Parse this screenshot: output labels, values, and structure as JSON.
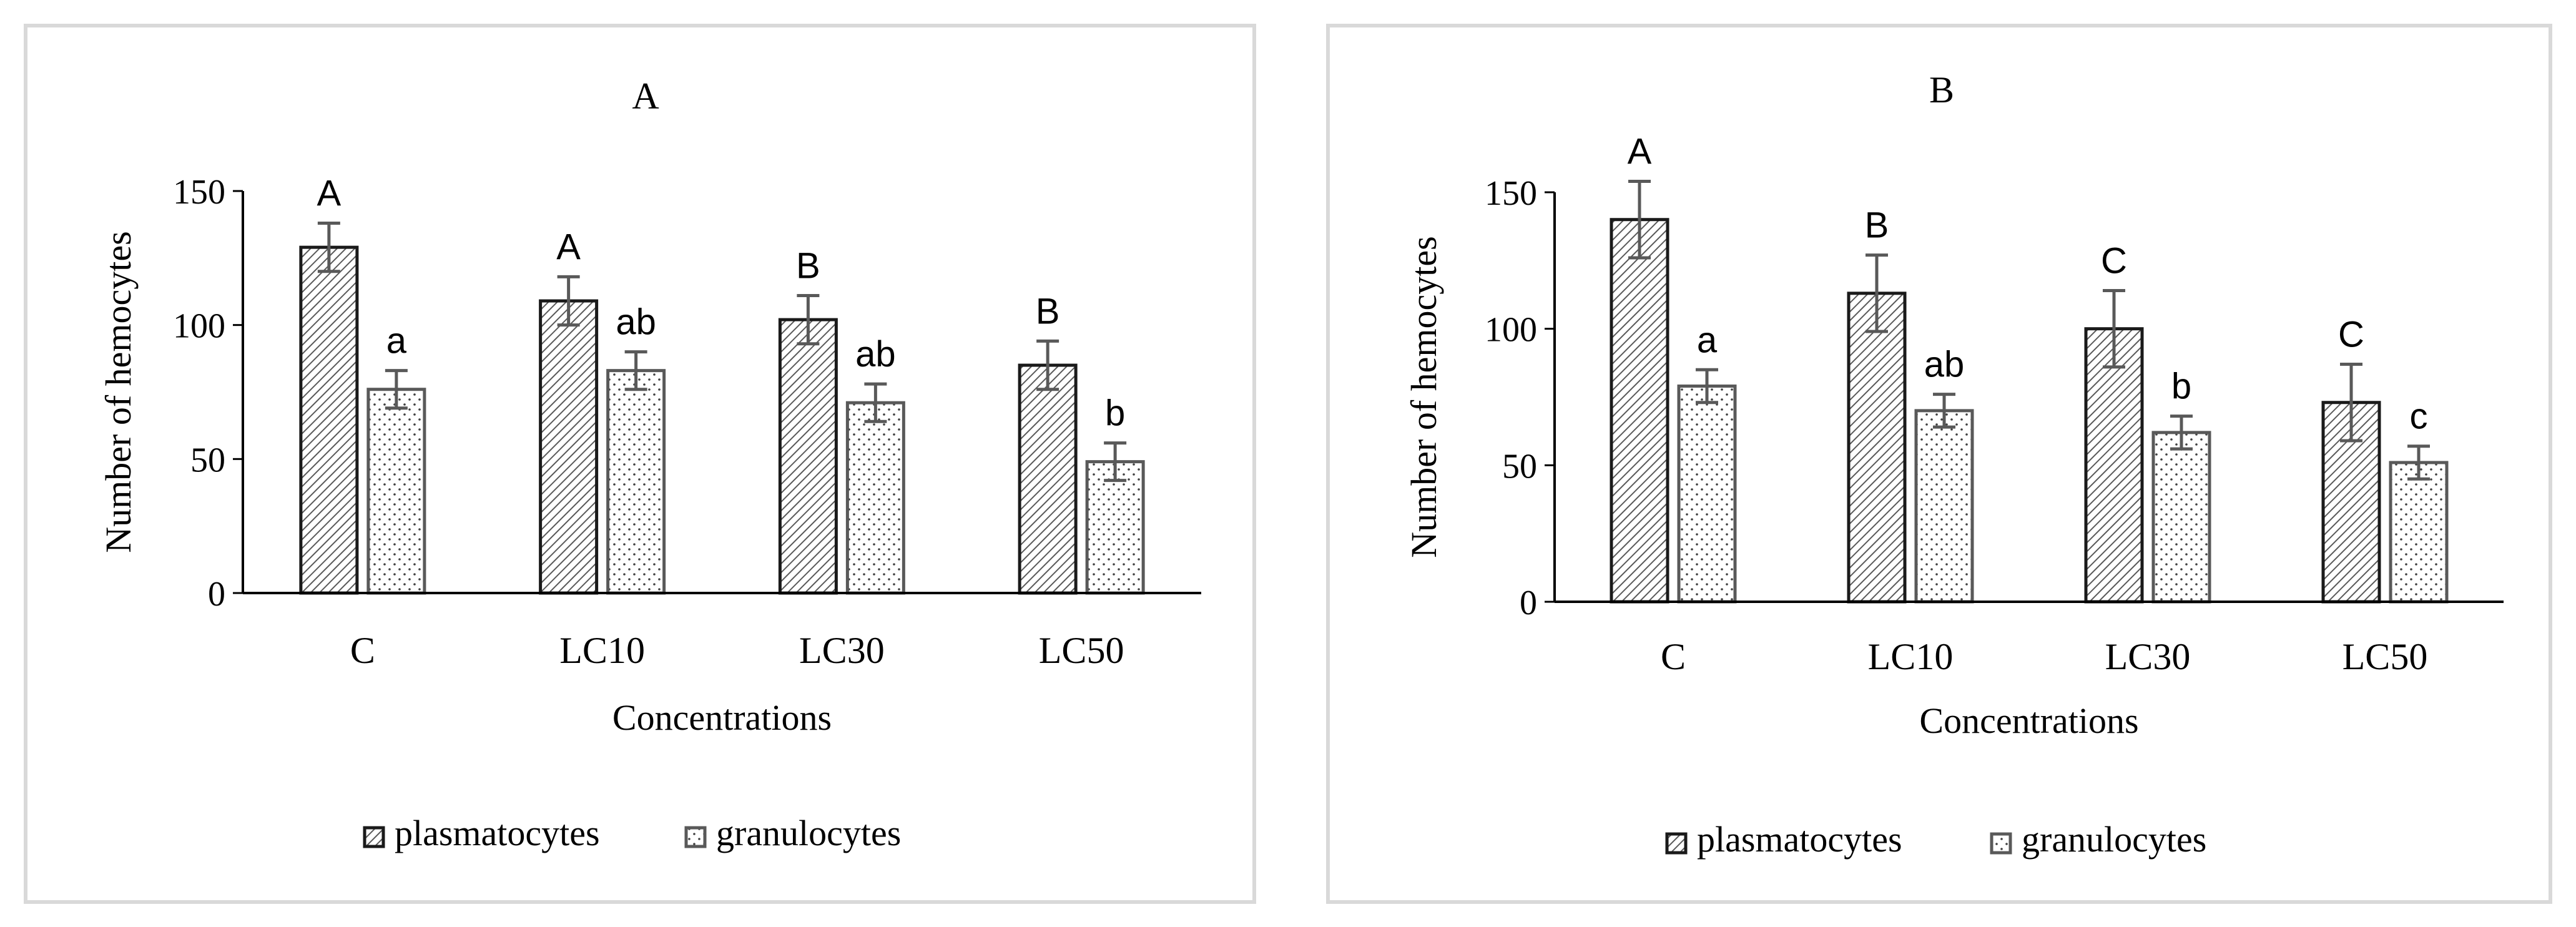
{
  "chart_data": [
    {
      "type": "bar",
      "title": "A",
      "xlabel": "Concentrations",
      "ylabel": "Number of hemocytes",
      "categories": [
        "C",
        "LC10",
        "LC30",
        "LC50"
      ],
      "ylim": [
        0,
        150
      ],
      "yticks": [
        0,
        50,
        100,
        150
      ],
      "grid": false,
      "legend_position": "bottom",
      "series": [
        {
          "name": "plasmatocytes",
          "pattern": "diagonal-hatch",
          "values": [
            129,
            109,
            102,
            85
          ],
          "errors": [
            9,
            9,
            9,
            9
          ],
          "labels": [
            "A",
            "A",
            "B",
            "B"
          ]
        },
        {
          "name": "granulocytes",
          "pattern": "dots",
          "values": [
            76,
            83,
            71,
            49
          ],
          "errors": [
            7,
            7,
            7,
            7
          ],
          "labels": [
            "a",
            "ab",
            "ab",
            "b"
          ]
        }
      ]
    },
    {
      "type": "bar",
      "title": "B",
      "xlabel": "Concentrations",
      "ylabel": "Number of hemocytes",
      "categories": [
        "C",
        "LC10",
        "LC30",
        "LC50"
      ],
      "ylim": [
        0,
        150
      ],
      "yticks": [
        0,
        50,
        100,
        150
      ],
      "grid": false,
      "legend_position": "bottom",
      "series": [
        {
          "name": "plasmatocytes",
          "pattern": "diagonal-hatch",
          "values": [
            140,
            113,
            100,
            73
          ],
          "errors": [
            14,
            14,
            14,
            14
          ],
          "labels": [
            "A",
            "B",
            "C",
            "C"
          ]
        },
        {
          "name": "granulocytes",
          "pattern": "dots",
          "values": [
            79,
            70,
            62,
            51
          ],
          "errors": [
            6,
            6,
            6,
            6
          ],
          "labels": [
            "a",
            "ab",
            "b",
            "c"
          ]
        }
      ]
    }
  ],
  "colors": {
    "bar_outline_plasmatocytes": "#1a1a1a",
    "bar_outline_granulocytes": "#595959",
    "error_bar": "#595959",
    "hatch": "#595959",
    "dot": "#404040",
    "panel_border": "#d9d9d9"
  }
}
